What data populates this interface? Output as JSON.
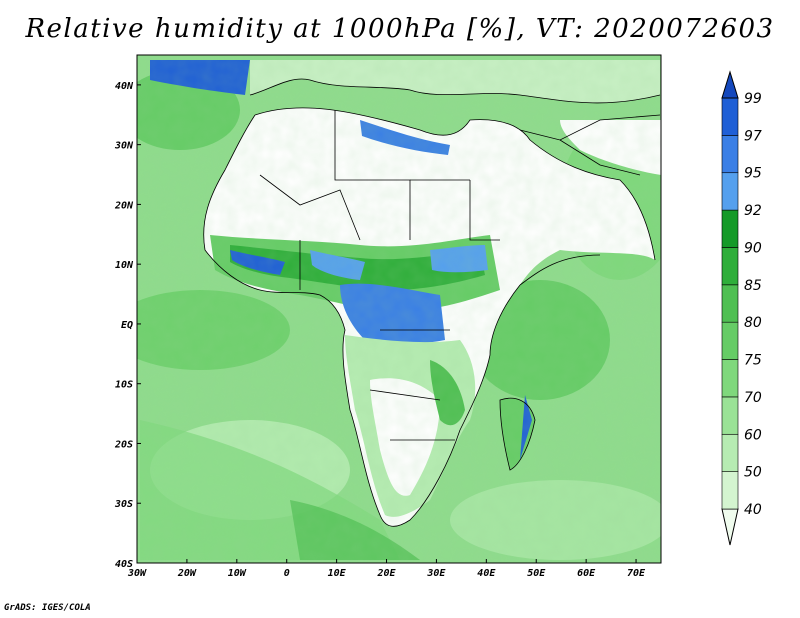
{
  "title": "Relative humidity at 1000hPa [%], VT: 2020072603",
  "credit": "GrADS: IGES/COLA",
  "map": {
    "lon_range": [
      -30,
      75
    ],
    "lat_range": [
      -40,
      45
    ],
    "lat_ticks": [
      {
        "value": 40,
        "label": "40N"
      },
      {
        "value": 30,
        "label": "30N"
      },
      {
        "value": 20,
        "label": "20N"
      },
      {
        "value": 10,
        "label": "10N"
      },
      {
        "value": 0,
        "label": "EQ"
      },
      {
        "value": -10,
        "label": "10S"
      },
      {
        "value": -20,
        "label": "20S"
      },
      {
        "value": -30,
        "label": "30S"
      },
      {
        "value": -40,
        "label": "40S"
      }
    ],
    "lon_ticks": [
      {
        "value": -30,
        "label": "30W"
      },
      {
        "value": -20,
        "label": "20W"
      },
      {
        "value": -10,
        "label": "10W"
      },
      {
        "value": 0,
        "label": "0"
      },
      {
        "value": 10,
        "label": "10E"
      },
      {
        "value": 20,
        "label": "20E"
      },
      {
        "value": 30,
        "label": "30E"
      },
      {
        "value": 40,
        "label": "40E"
      },
      {
        "value": 50,
        "label": "50E"
      },
      {
        "value": 60,
        "label": "60E"
      },
      {
        "value": 70,
        "label": "70E"
      }
    ]
  },
  "colorbar": {
    "levels": [
      "40",
      "50",
      "60",
      "70",
      "75",
      "80",
      "85",
      "90",
      "92",
      "95",
      "97",
      "99"
    ],
    "colors": [
      "#f0fcee",
      "#d4f5d0",
      "#b6ecb2",
      "#9ae296",
      "#7fd87c",
      "#66cc66",
      "#4fbf52",
      "#2fae3a",
      "#159a28",
      "#55a0ee",
      "#3a7fe6",
      "#1f5fd6",
      "#1448bd"
    ]
  },
  "chart_data": {
    "type": "heatmap",
    "title": "Relative humidity at 1000hPa [%], VT: 2020072603",
    "xlabel": "",
    "ylabel": "",
    "xlim": [
      -30,
      75
    ],
    "ylim": [
      -40,
      45
    ],
    "levels": [
      40,
      50,
      60,
      70,
      75,
      80,
      85,
      90,
      92,
      95,
      97,
      99
    ]
  }
}
